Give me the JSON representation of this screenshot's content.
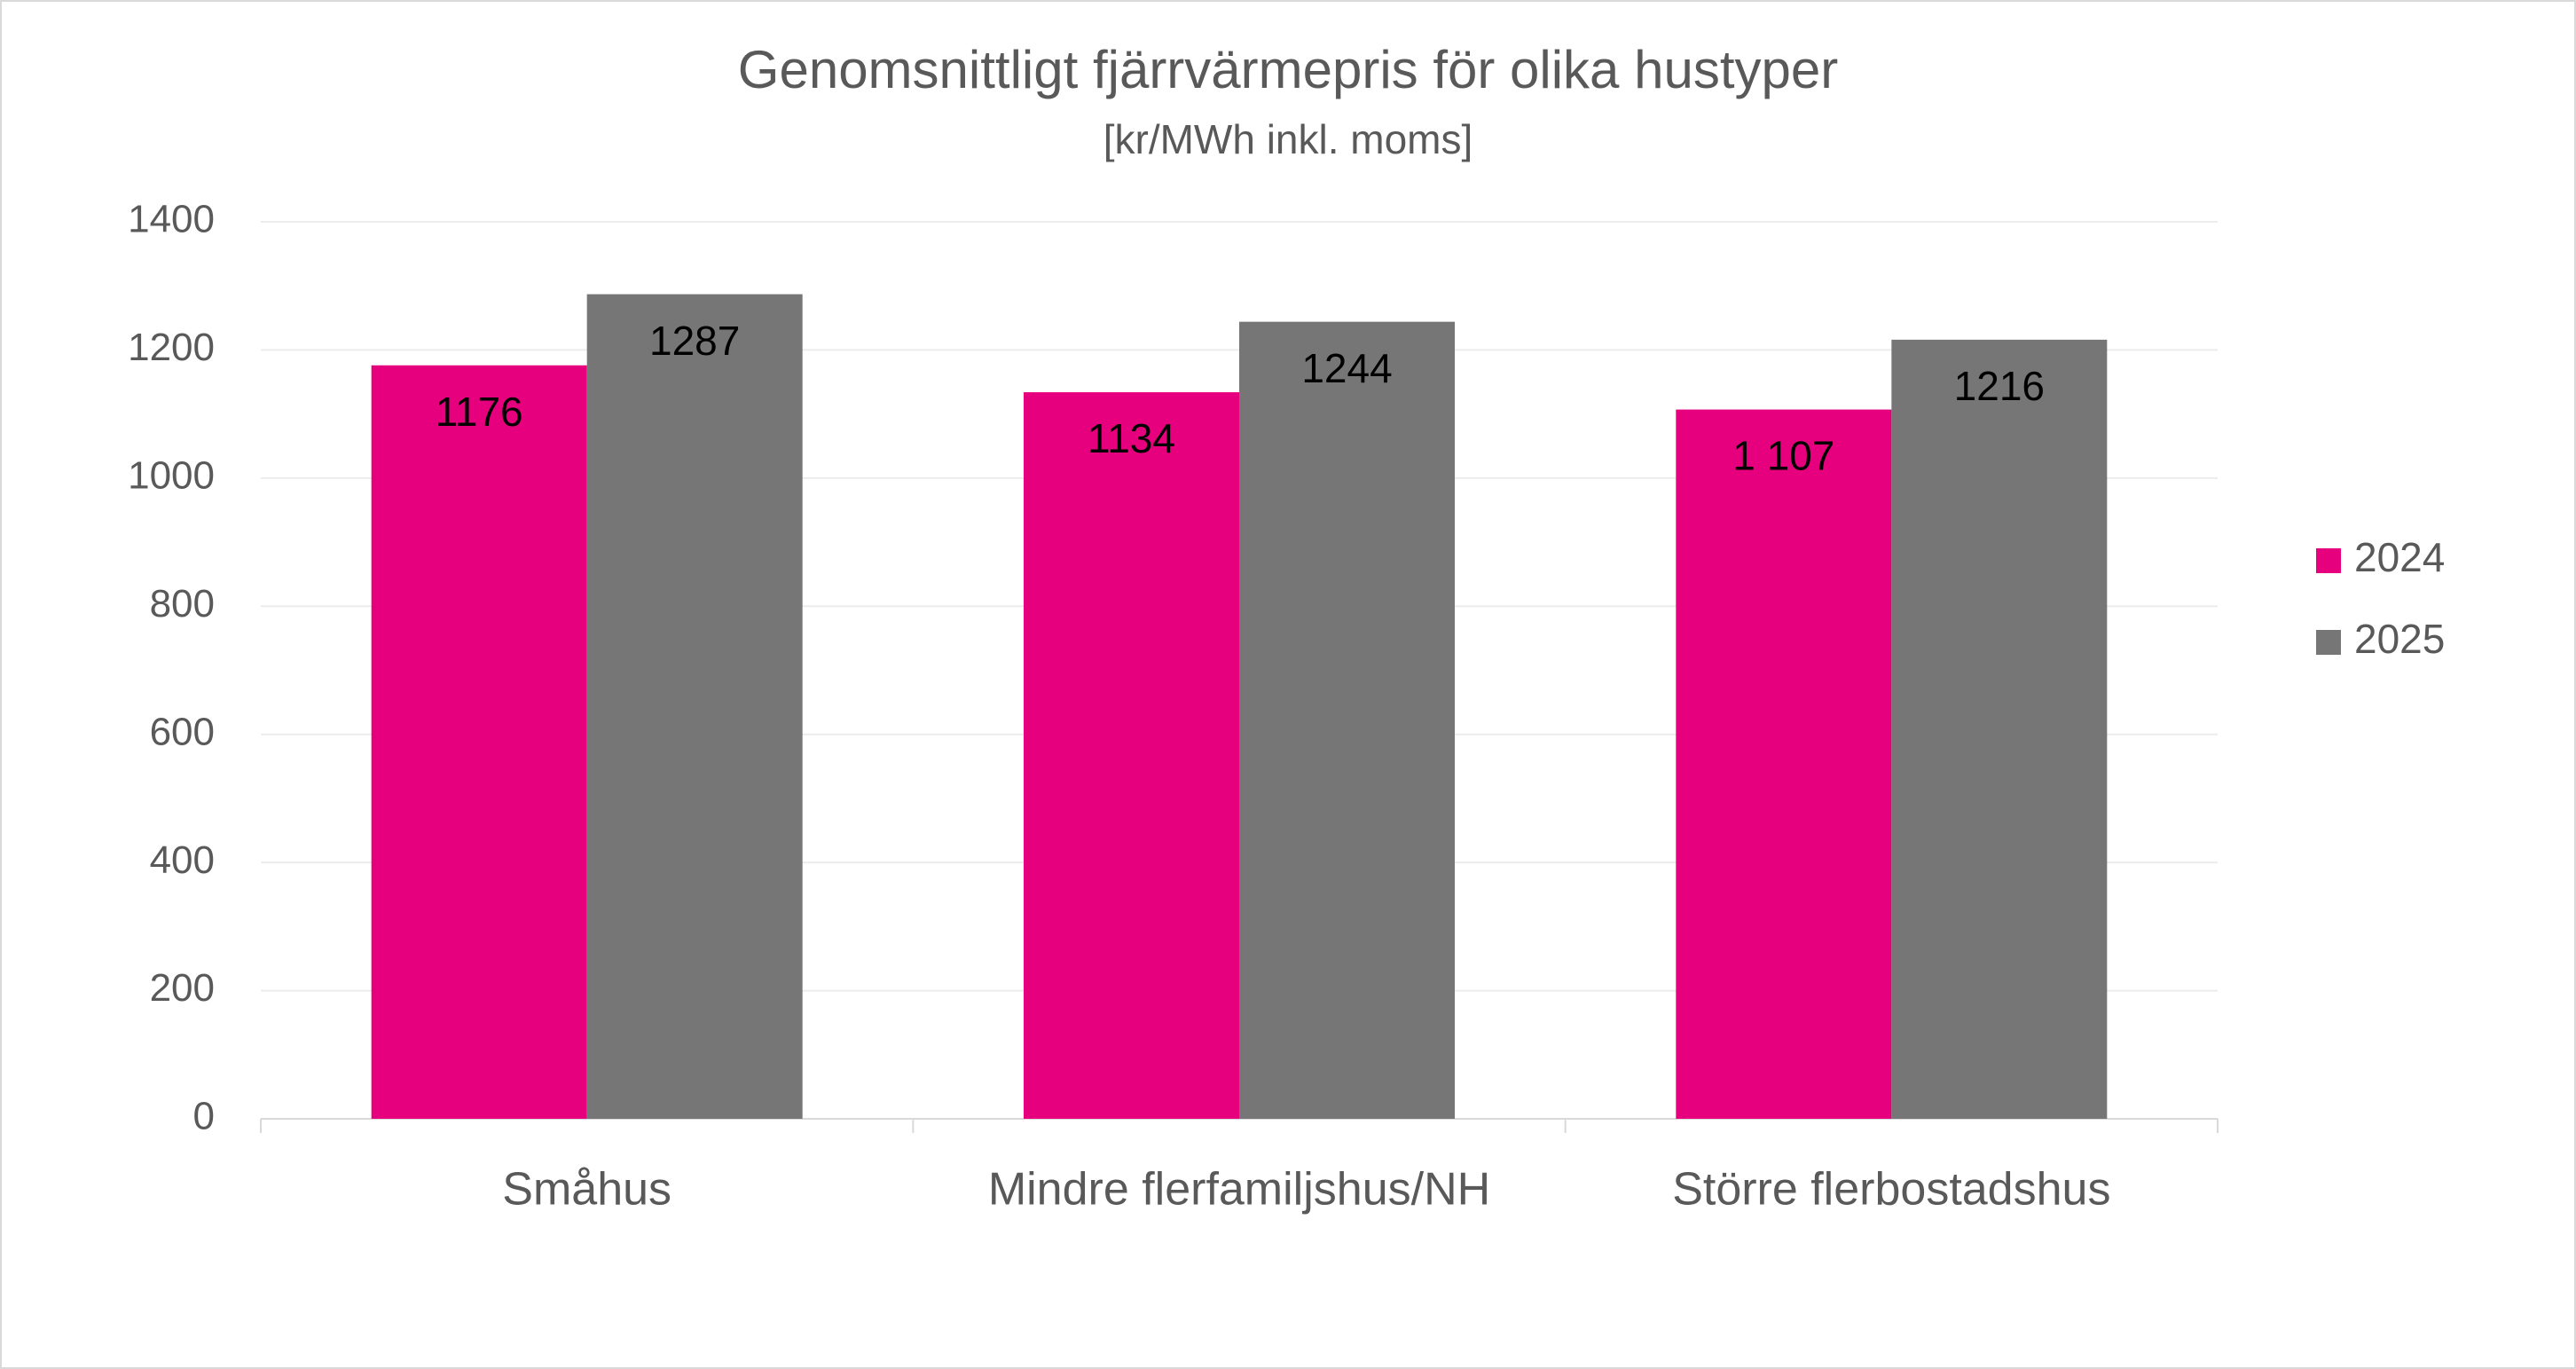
{
  "chart_data": {
    "type": "bar",
    "title": "Genomsnittligt fjärrvärmepris för olika hustyper",
    "subtitle": "[kr/MWh inkl. moms]",
    "categories": [
      "Småhus",
      "Mindre flerfamiljshus/NH",
      "Större flerbostadshus"
    ],
    "series": [
      {
        "name": "2024",
        "color": "#e6007e",
        "values": [
          1176,
          1134,
          1107
        ],
        "value_labels": [
          "1176",
          "1134",
          "1 107"
        ]
      },
      {
        "name": "2025",
        "color": "#767676",
        "values": [
          1287,
          1244,
          1216
        ],
        "value_labels": [
          "1287",
          "1244",
          "1216"
        ]
      }
    ],
    "ylim": [
      0,
      1400
    ],
    "yticks": [
      0,
      200,
      400,
      600,
      800,
      1000,
      1200,
      1400
    ],
    "grid": true,
    "legend": "right"
  }
}
